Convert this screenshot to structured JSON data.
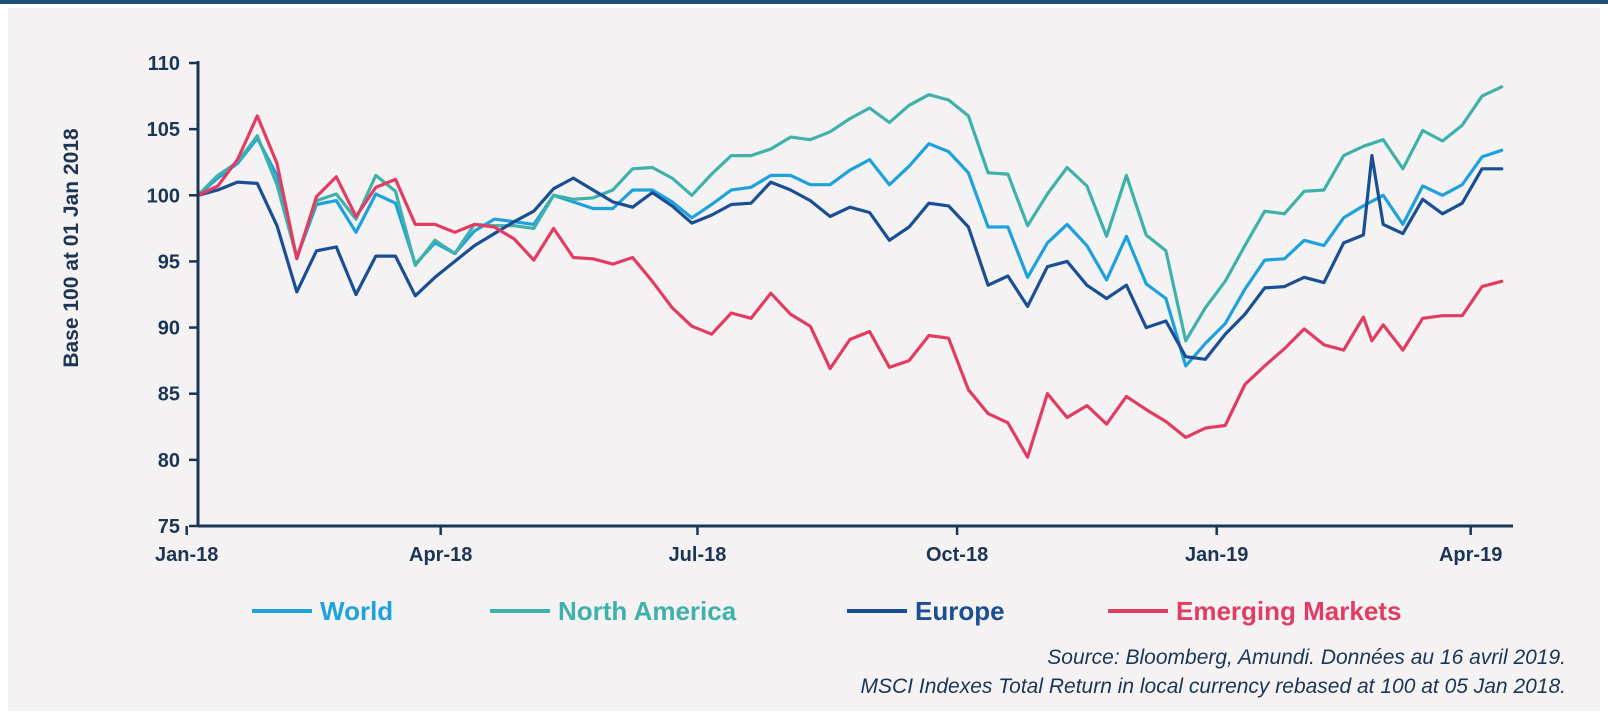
{
  "chart_data": {
    "type": "line",
    "title": "",
    "xlabel": "",
    "ylabel": "Base 100 at 01 Jan 2018",
    "ylim": [
      75,
      110
    ],
    "yticks": [
      "75",
      "80",
      "85",
      "90",
      "95",
      "100",
      "105",
      "110"
    ],
    "x_range": [
      "2018-01-05",
      "2019-04-16"
    ],
    "xticks": [
      {
        "date": "2018-01-01",
        "label": "Jan-18"
      },
      {
        "date": "2018-04-01",
        "label": "Apr-18"
      },
      {
        "date": "2018-07-01",
        "label": "Jul-18"
      },
      {
        "date": "2018-10-01",
        "label": "Oct-18"
      },
      {
        "date": "2019-01-01",
        "label": "Jan-19"
      },
      {
        "date": "2019-04-01",
        "label": "Apr-19"
      }
    ],
    "grid": false,
    "legend_position": "bottom",
    "series": [
      {
        "name": "World",
        "color": "#1ea2dc",
        "points": [
          [
            "2018-01-05",
            100
          ],
          [
            "2018-01-12",
            101.3
          ],
          [
            "2018-01-19",
            102.4
          ],
          [
            "2018-01-26",
            104.3
          ],
          [
            "2018-02-02",
            101.5
          ],
          [
            "2018-02-09",
            95.3
          ],
          [
            "2018-02-16",
            99.3
          ],
          [
            "2018-02-23",
            99.6
          ],
          [
            "2018-03-02",
            97.2
          ],
          [
            "2018-03-09",
            100.1
          ],
          [
            "2018-03-16",
            99.4
          ],
          [
            "2018-03-23",
            94.8
          ],
          [
            "2018-03-30",
            96.4
          ],
          [
            "2018-04-06",
            95.6
          ],
          [
            "2018-04-13",
            97.3
          ],
          [
            "2018-04-20",
            98.2
          ],
          [
            "2018-04-27",
            98
          ],
          [
            "2018-05-04",
            97.8
          ],
          [
            "2018-05-11",
            100
          ],
          [
            "2018-05-18",
            99.5
          ],
          [
            "2018-05-25",
            99
          ],
          [
            "2018-06-01",
            99
          ],
          [
            "2018-06-08",
            100.4
          ],
          [
            "2018-06-15",
            100.4
          ],
          [
            "2018-06-22",
            99.5
          ],
          [
            "2018-06-29",
            98.3
          ],
          [
            "2018-07-06",
            99.3
          ],
          [
            "2018-07-13",
            100.4
          ],
          [
            "2018-07-20",
            100.6
          ],
          [
            "2018-07-27",
            101.5
          ],
          [
            "2018-08-03",
            101.5
          ],
          [
            "2018-08-10",
            100.8
          ],
          [
            "2018-08-17",
            100.8
          ],
          [
            "2018-08-24",
            101.9
          ],
          [
            "2018-08-31",
            102.7
          ],
          [
            "2018-09-07",
            100.8
          ],
          [
            "2018-09-14",
            102.2
          ],
          [
            "2018-09-21",
            103.9
          ],
          [
            "2018-09-28",
            103.3
          ],
          [
            "2018-10-05",
            101.7
          ],
          [
            "2018-10-12",
            97.6
          ],
          [
            "2018-10-19",
            97.6
          ],
          [
            "2018-10-26",
            93.8
          ],
          [
            "2018-11-02",
            96.4
          ],
          [
            "2018-11-09",
            97.8
          ],
          [
            "2018-11-16",
            96.2
          ],
          [
            "2018-11-23",
            93.6
          ],
          [
            "2018-11-30",
            96.9
          ],
          [
            "2018-12-07",
            93.3
          ],
          [
            "2018-12-14",
            92.2
          ],
          [
            "2018-12-21",
            87.1
          ],
          [
            "2018-12-28",
            88.8
          ],
          [
            "2019-01-04",
            90.3
          ],
          [
            "2019-01-11",
            92.9
          ],
          [
            "2019-01-18",
            95.1
          ],
          [
            "2019-01-25",
            95.2
          ],
          [
            "2019-02-01",
            96.6
          ],
          [
            "2019-02-08",
            96.2
          ],
          [
            "2019-02-15",
            98.3
          ],
          [
            "2019-02-22",
            99.2
          ],
          [
            "2019-03-01",
            100
          ],
          [
            "2019-03-08",
            97.8
          ],
          [
            "2019-03-15",
            100.7
          ],
          [
            "2019-03-22",
            100
          ],
          [
            "2019-03-29",
            100.8
          ],
          [
            "2019-04-05",
            102.9
          ],
          [
            "2019-04-12",
            103.4
          ]
        ]
      },
      {
        "name": "North America",
        "color": "#3fb1ab",
        "points": [
          [
            "2018-01-05",
            100
          ],
          [
            "2018-01-12",
            101.5
          ],
          [
            "2018-01-19",
            102.5
          ],
          [
            "2018-01-26",
            104.5
          ],
          [
            "2018-02-02",
            100.8
          ],
          [
            "2018-02-09",
            95.3
          ],
          [
            "2018-02-16",
            99.6
          ],
          [
            "2018-02-23",
            100.1
          ],
          [
            "2018-03-02",
            98.2
          ],
          [
            "2018-03-09",
            101.5
          ],
          [
            "2018-03-16",
            100.3
          ],
          [
            "2018-03-23",
            94.7
          ],
          [
            "2018-03-30",
            96.6
          ],
          [
            "2018-04-06",
            95.6
          ],
          [
            "2018-04-13",
            97.8
          ],
          [
            "2018-04-20",
            97.7
          ],
          [
            "2018-04-27",
            97.7
          ],
          [
            "2018-05-04",
            97.5
          ],
          [
            "2018-05-11",
            100
          ],
          [
            "2018-05-18",
            99.7
          ],
          [
            "2018-05-25",
            99.8
          ],
          [
            "2018-06-01",
            100.4
          ],
          [
            "2018-06-08",
            102
          ],
          [
            "2018-06-15",
            102.1
          ],
          [
            "2018-06-22",
            101.3
          ],
          [
            "2018-06-29",
            100
          ],
          [
            "2018-07-06",
            101.6
          ],
          [
            "2018-07-13",
            103
          ],
          [
            "2018-07-20",
            103
          ],
          [
            "2018-07-27",
            103.5
          ],
          [
            "2018-08-03",
            104.4
          ],
          [
            "2018-08-10",
            104.2
          ],
          [
            "2018-08-17",
            104.8
          ],
          [
            "2018-08-24",
            105.8
          ],
          [
            "2018-08-31",
            106.6
          ],
          [
            "2018-09-07",
            105.5
          ],
          [
            "2018-09-14",
            106.8
          ],
          [
            "2018-09-21",
            107.6
          ],
          [
            "2018-09-28",
            107.2
          ],
          [
            "2018-10-05",
            106
          ],
          [
            "2018-10-12",
            101.7
          ],
          [
            "2018-10-19",
            101.6
          ],
          [
            "2018-10-26",
            97.7
          ],
          [
            "2018-11-02",
            100.1
          ],
          [
            "2018-11-09",
            102.1
          ],
          [
            "2018-11-16",
            100.7
          ],
          [
            "2018-11-23",
            96.9
          ],
          [
            "2018-11-30",
            101.5
          ],
          [
            "2018-12-07",
            97
          ],
          [
            "2018-12-14",
            95.8
          ],
          [
            "2018-12-21",
            89
          ],
          [
            "2018-12-28",
            91.5
          ],
          [
            "2019-01-04",
            93.5
          ],
          [
            "2019-01-11",
            96.2
          ],
          [
            "2019-01-18",
            98.8
          ],
          [
            "2019-01-25",
            98.6
          ],
          [
            "2019-02-01",
            100.3
          ],
          [
            "2019-02-08",
            100.4
          ],
          [
            "2019-02-15",
            103
          ],
          [
            "2019-02-22",
            103.7
          ],
          [
            "2019-03-01",
            104.2
          ],
          [
            "2019-03-08",
            102
          ],
          [
            "2019-03-15",
            104.9
          ],
          [
            "2019-03-22",
            104.1
          ],
          [
            "2019-03-29",
            105.3
          ],
          [
            "2019-04-05",
            107.5
          ],
          [
            "2019-04-12",
            108.2
          ]
        ]
      },
      {
        "name": "Europe",
        "color": "#1a4f94",
        "points": [
          [
            "2018-01-05",
            100
          ],
          [
            "2018-01-12",
            100.4
          ],
          [
            "2018-01-19",
            101
          ],
          [
            "2018-01-26",
            100.9
          ],
          [
            "2018-02-02",
            97.7
          ],
          [
            "2018-02-09",
            92.7
          ],
          [
            "2018-02-16",
            95.8
          ],
          [
            "2018-02-23",
            96.1
          ],
          [
            "2018-03-02",
            92.5
          ],
          [
            "2018-03-09",
            95.4
          ],
          [
            "2018-03-16",
            95.4
          ],
          [
            "2018-03-23",
            92.4
          ],
          [
            "2018-03-30",
            93.8
          ],
          [
            "2018-04-06",
            95
          ],
          [
            "2018-04-13",
            96.2
          ],
          [
            "2018-04-20",
            97.1
          ],
          [
            "2018-04-27",
            98
          ],
          [
            "2018-05-04",
            98.8
          ],
          [
            "2018-05-11",
            100.5
          ],
          [
            "2018-05-18",
            101.3
          ],
          [
            "2018-05-25",
            100.4
          ],
          [
            "2018-06-01",
            99.5
          ],
          [
            "2018-06-08",
            99.1
          ],
          [
            "2018-06-15",
            100.2
          ],
          [
            "2018-06-22",
            99.2
          ],
          [
            "2018-06-29",
            97.9
          ],
          [
            "2018-07-06",
            98.5
          ],
          [
            "2018-07-13",
            99.3
          ],
          [
            "2018-07-20",
            99.4
          ],
          [
            "2018-07-27",
            101
          ],
          [
            "2018-08-03",
            100.4
          ],
          [
            "2018-08-10",
            99.6
          ],
          [
            "2018-08-17",
            98.4
          ],
          [
            "2018-08-24",
            99.1
          ],
          [
            "2018-08-31",
            98.7
          ],
          [
            "2018-09-07",
            96.6
          ],
          [
            "2018-09-14",
            97.6
          ],
          [
            "2018-09-21",
            99.4
          ],
          [
            "2018-09-28",
            99.2
          ],
          [
            "2018-10-05",
            97.6
          ],
          [
            "2018-10-12",
            93.2
          ],
          [
            "2018-10-19",
            93.9
          ],
          [
            "2018-10-26",
            91.6
          ],
          [
            "2018-11-02",
            94.6
          ],
          [
            "2018-11-09",
            95
          ],
          [
            "2018-11-16",
            93.2
          ],
          [
            "2018-11-23",
            92.2
          ],
          [
            "2018-11-30",
            93.2
          ],
          [
            "2018-12-07",
            90
          ],
          [
            "2018-12-14",
            90.5
          ],
          [
            "2018-12-21",
            87.8
          ],
          [
            "2018-12-28",
            87.6
          ],
          [
            "2019-01-04",
            89.5
          ],
          [
            "2019-01-11",
            91
          ],
          [
            "2019-01-18",
            93
          ],
          [
            "2019-01-25",
            93.1
          ],
          [
            "2019-02-01",
            93.8
          ],
          [
            "2019-02-08",
            93.4
          ],
          [
            "2019-02-15",
            96.4
          ],
          [
            "2019-02-22",
            97
          ],
          [
            "2019-02-25",
            103
          ],
          [
            "2019-03-01",
            97.8
          ],
          [
            "2019-03-08",
            97.1
          ],
          [
            "2019-03-15",
            99.7
          ],
          [
            "2019-03-22",
            98.6
          ],
          [
            "2019-03-29",
            99.4
          ],
          [
            "2019-04-05",
            102
          ],
          [
            "2019-04-12",
            102
          ]
        ]
      },
      {
        "name": "Emerging Markets",
        "color": "#e23c63",
        "points": [
          [
            "2018-01-05",
            100
          ],
          [
            "2018-01-12",
            100.7
          ],
          [
            "2018-01-19",
            102.7
          ],
          [
            "2018-01-26",
            106
          ],
          [
            "2018-02-02",
            102.4
          ],
          [
            "2018-02-09",
            95.2
          ],
          [
            "2018-02-16",
            99.9
          ],
          [
            "2018-02-23",
            101.4
          ],
          [
            "2018-03-02",
            98.4
          ],
          [
            "2018-03-09",
            100.6
          ],
          [
            "2018-03-16",
            101.2
          ],
          [
            "2018-03-23",
            97.8
          ],
          [
            "2018-03-30",
            97.8
          ],
          [
            "2018-04-06",
            97.2
          ],
          [
            "2018-04-13",
            97.8
          ],
          [
            "2018-04-20",
            97.6
          ],
          [
            "2018-04-27",
            96.7
          ],
          [
            "2018-05-04",
            95.1
          ],
          [
            "2018-05-11",
            97.5
          ],
          [
            "2018-05-18",
            95.3
          ],
          [
            "2018-05-25",
            95.2
          ],
          [
            "2018-06-01",
            94.8
          ],
          [
            "2018-06-08",
            95.3
          ],
          [
            "2018-06-15",
            93.5
          ],
          [
            "2018-06-22",
            91.5
          ],
          [
            "2018-06-29",
            90.1
          ],
          [
            "2018-07-06",
            89.5
          ],
          [
            "2018-07-13",
            91.1
          ],
          [
            "2018-07-20",
            90.7
          ],
          [
            "2018-07-27",
            92.6
          ],
          [
            "2018-08-03",
            91
          ],
          [
            "2018-08-10",
            90.1
          ],
          [
            "2018-08-17",
            86.9
          ],
          [
            "2018-08-24",
            89.1
          ],
          [
            "2018-08-31",
            89.7
          ],
          [
            "2018-09-07",
            87
          ],
          [
            "2018-09-14",
            87.5
          ],
          [
            "2018-09-21",
            89.4
          ],
          [
            "2018-09-28",
            89.2
          ],
          [
            "2018-10-05",
            85.3
          ],
          [
            "2018-10-12",
            83.5
          ],
          [
            "2018-10-19",
            82.8
          ],
          [
            "2018-10-26",
            80.2
          ],
          [
            "2018-11-02",
            85
          ],
          [
            "2018-11-09",
            83.2
          ],
          [
            "2018-11-16",
            84.1
          ],
          [
            "2018-11-23",
            82.7
          ],
          [
            "2018-11-30",
            84.8
          ],
          [
            "2018-12-07",
            83.8
          ],
          [
            "2018-12-14",
            82.9
          ],
          [
            "2018-12-21",
            81.7
          ],
          [
            "2018-12-28",
            82.4
          ],
          [
            "2019-01-04",
            82.6
          ],
          [
            "2019-01-11",
            85.7
          ],
          [
            "2019-01-18",
            87.1
          ],
          [
            "2019-01-25",
            88.4
          ],
          [
            "2019-02-01",
            89.9
          ],
          [
            "2019-02-08",
            88.7
          ],
          [
            "2019-02-15",
            88.3
          ],
          [
            "2019-02-22",
            90.8
          ],
          [
            "2019-02-25",
            89
          ],
          [
            "2019-03-01",
            90.2
          ],
          [
            "2019-03-08",
            88.3
          ],
          [
            "2019-03-15",
            90.7
          ],
          [
            "2019-03-22",
            90.9
          ],
          [
            "2019-03-29",
            90.9
          ],
          [
            "2019-04-05",
            93.1
          ],
          [
            "2019-04-12",
            93.5
          ]
        ]
      }
    ]
  },
  "source": {
    "line1": "Source: Bloomberg, Amundi. Données au 16 avril 2019.",
    "line2": "MSCI Indexes Total Return in local currency rebased at 100 at 05 Jan 2018."
  }
}
